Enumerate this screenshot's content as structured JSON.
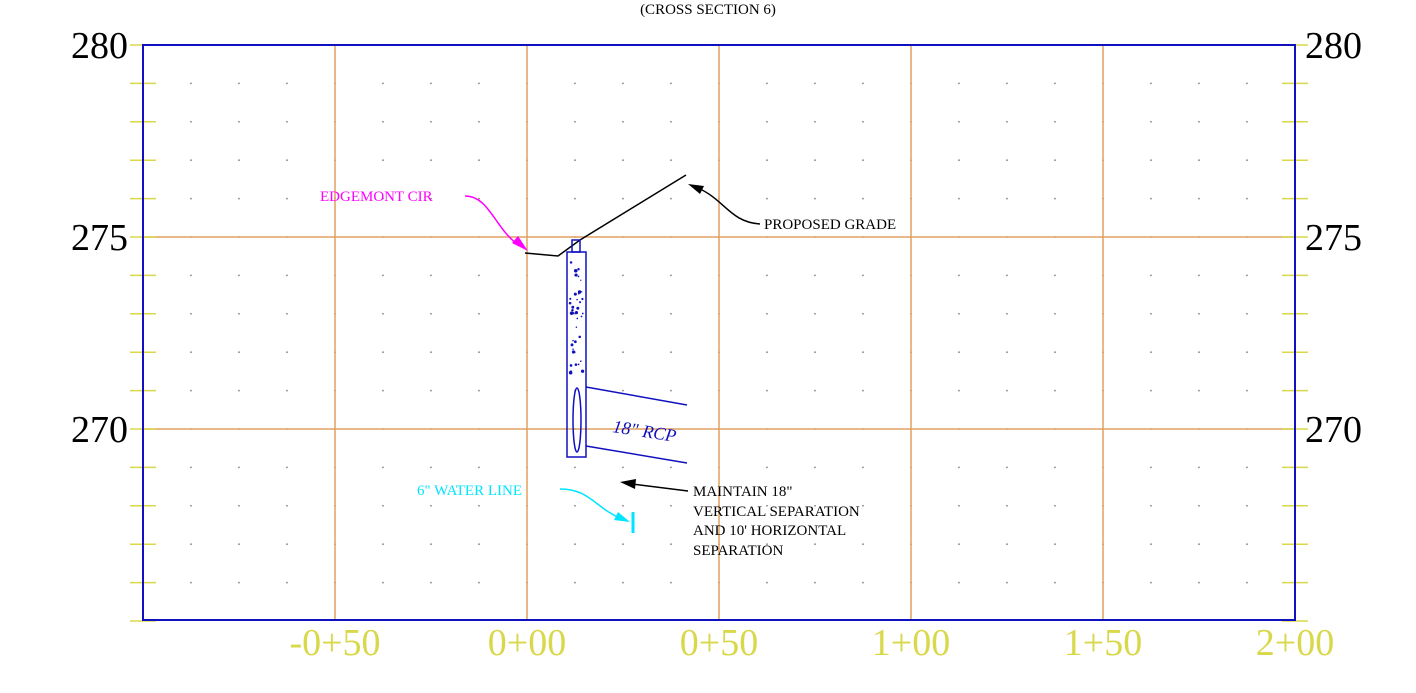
{
  "title": "(CROSS SECTION 6)",
  "left_elevations": [
    "280",
    "275",
    "270"
  ],
  "right_elevations": [
    "280",
    "275",
    "270"
  ],
  "stations": [
    "-0+50",
    "0+00",
    "0+50",
    "1+00",
    "1+50",
    "2+00"
  ],
  "annotations": {
    "edgemont": "EDGEMONT CIR",
    "proposed_grade": "PROPOSED GRADE",
    "pipe": "18\" RCP",
    "water_line": "6\" WATER LINE",
    "separation": [
      "MAINTAIN 18\"",
      "VERTICAL SEPARATION",
      "AND 10' HORIZONTAL",
      "SEPARATION"
    ]
  }
}
